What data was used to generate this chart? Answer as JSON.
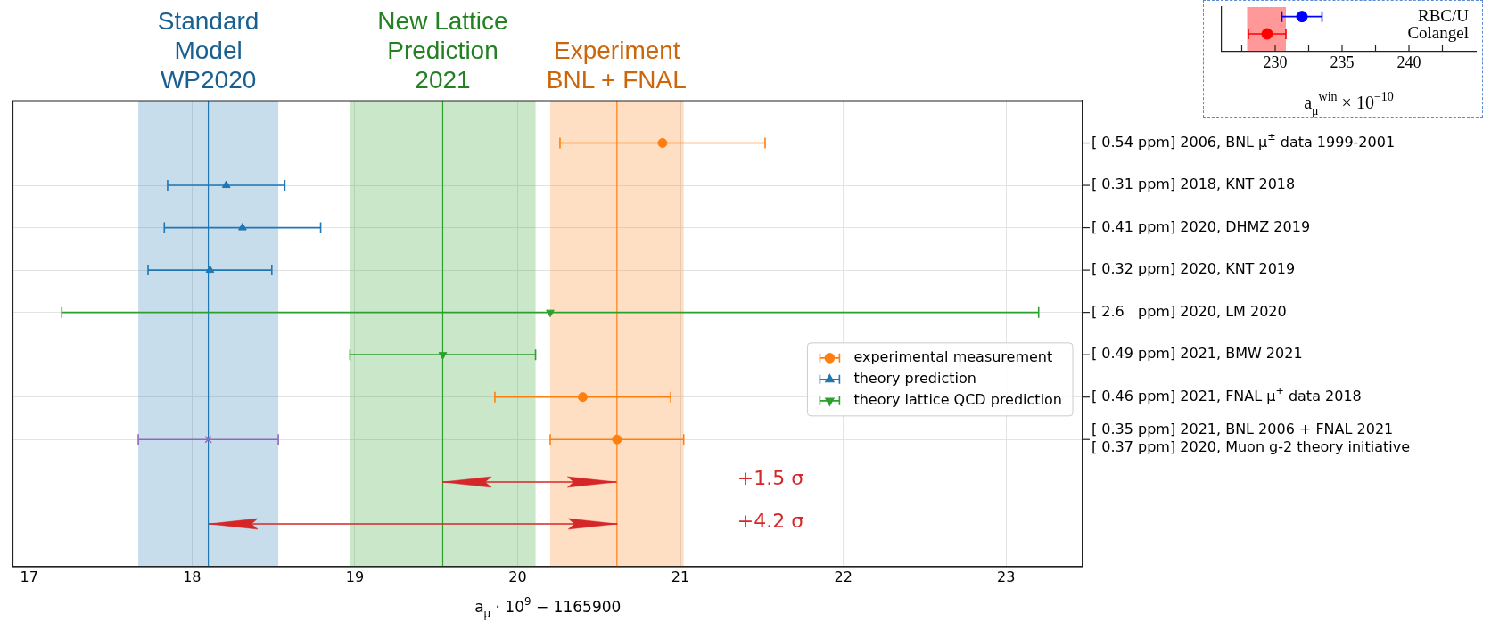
{
  "chart_data": [
    {
      "type": "scatter",
      "orientation": "horizontal",
      "xlabel": "a$_{μ}$ · 10$^{9}$ − 1165900",
      "categories": [
        "[ 0.54 ppm] 2006, BNL μ$^{±}$ data 1999-2001",
        "[ 0.31 ppm] 2018, KNT 2018",
        "[ 0.41 ppm] 2020, DHMZ 2019",
        "[ 0.32 ppm] 2020, KNT 2019",
        "[ 2.6   ppm] 2020, LM 2020",
        "[ 0.49 ppm] 2021, BMW 2021",
        "[ 0.46 ppm] 2021, FNAL μ$^{+}$ data 2018",
        "[ 0.35 ppm] 2021, BNL 2006 + FNAL 2021\n[ 0.37 ppm] 2020, Muon g-2 theory initiative",
        null,
        null
      ],
      "xlim": [
        16.9,
        23.47
      ],
      "xticks": [
        17,
        18,
        19,
        20,
        21,
        22,
        23
      ],
      "grid": true,
      "legend": "right",
      "series": [
        {
          "name": "experimental measurement",
          "color": "#ff7f0e",
          "marker": "circle",
          "values": [
            20.89,
            null,
            null,
            null,
            null,
            null,
            20.4,
            20.61,
            null,
            null
          ],
          "errors": [
            0.63,
            null,
            null,
            null,
            null,
            null,
            0.54,
            0.41,
            null,
            null
          ]
        },
        {
          "name": "theory prediction",
          "color": "#1f77b4",
          "marker": "triangle",
          "values": [
            null,
            18.21,
            18.31,
            18.11,
            null,
            null,
            null,
            null,
            null,
            null
          ],
          "errors": [
            null,
            0.36,
            0.48,
            0.38,
            null,
            null,
            null,
            null,
            null,
            null
          ]
        },
        {
          "name": "theory lattice QCD prediction",
          "color": "#2ca02c",
          "marker": "triangle_down",
          "values": [
            null,
            null,
            null,
            null,
            20.2,
            19.54,
            null,
            null,
            null,
            null
          ],
          "errors": [
            null,
            null,
            null,
            null,
            3.0,
            0.57,
            null,
            null,
            null,
            null
          ]
        },
        {
          "color": "#9467bd",
          "marker": "cross",
          "values": [
            null,
            null,
            null,
            null,
            null,
            null,
            null,
            18.1,
            null,
            null
          ],
          "errors": [
            null,
            null,
            null,
            null,
            null,
            null,
            null,
            0.43,
            null,
            null
          ]
        }
      ],
      "bands": [
        {
          "axis": "x",
          "from": 17.67,
          "to": 18.53,
          "label": "Standard\nModel\nWP2020",
          "color": "#1f77b4"
        },
        {
          "axis": "x",
          "from": 18.97,
          "to": 20.11,
          "label": "New Lattice\nPrediction\n2021",
          "color": "#2ca02c"
        },
        {
          "axis": "x",
          "from": 20.2,
          "to": 21.02,
          "label": "Experiment\nBNL + FNAL",
          "color": "#ff7f0e"
        }
      ],
      "ref_lines": [
        {
          "axis": "x",
          "value": 18.1,
          "color": "#1f77b4"
        },
        {
          "axis": "x",
          "value": 19.54,
          "color": "#2ca02c"
        },
        {
          "axis": "x",
          "value": 20.61,
          "color": "#ff7f0e"
        }
      ],
      "annotations": [
        "+1.5 σ",
        "+4.2 σ"
      ]
    },
    {
      "type": "scatter",
      "orientation": "horizontal",
      "xlabel": "a$_{μ}$$^{win}$ × 10$^{−10}$",
      "categories": [
        "RBC/U",
        "Colangel"
      ],
      "xlim": [
        226,
        245
      ],
      "xticks": [
        {
          "value": 227.5,
          "label": null
        },
        230,
        {
          "value": 232.5,
          "label": null
        },
        235,
        {
          "value": 237.5,
          "label": null
        },
        240,
        {
          "value": 242.5,
          "label": null
        }
      ],
      "series": [
        {
          "color": "#0000ff",
          "marker": "circle",
          "values": [
            232.0,
            null
          ],
          "errors": [
            1.5,
            null
          ]
        },
        {
          "color": "#ff0000",
          "marker": "circle",
          "values": [
            null,
            229.4
          ],
          "errors": [
            null,
            1.4
          ]
        }
      ],
      "bands": [
        {
          "axis": "x",
          "from": 227.9,
          "to": 230.8,
          "color": "#ff0000"
        }
      ]
    }
  ]
}
